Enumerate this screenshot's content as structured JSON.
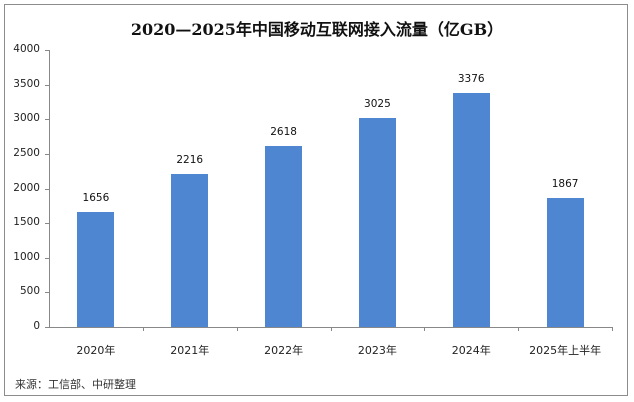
{
  "chart_data": {
    "type": "bar",
    "title": "2020—2025年中国移动互联网接入流量（亿GB）",
    "categories": [
      "2020年",
      "2021年",
      "2022年",
      "2023年",
      "2024年",
      "2025年上半年"
    ],
    "values": [
      1656,
      2216,
      2618,
      3025,
      3376,
      1867
    ],
    "value_labels": [
      "1656",
      "2216",
      "2618",
      "3025",
      "3376",
      "1867"
    ],
    "xlabel": "",
    "ylabel": "",
    "ylim": [
      0,
      4000
    ],
    "yticks": [
      "0",
      "500",
      "1000",
      "1500",
      "2000",
      "2500",
      "3000",
      "3500",
      "4000"
    ],
    "grid": false,
    "legend": null,
    "bar_color": "#4f86d1",
    "source": "来源：工信部、中研整理"
  }
}
